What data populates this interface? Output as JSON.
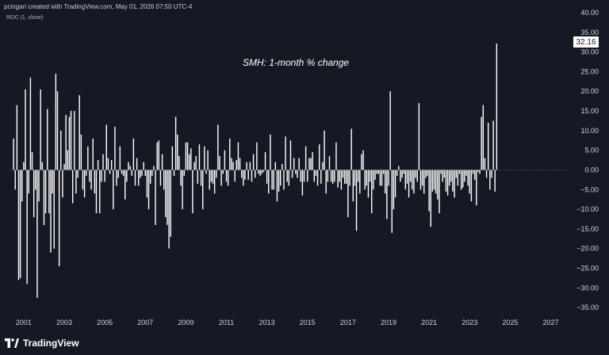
{
  "header": {
    "credit": "pcingari created with TradingView.com, May 01, 2026 07:50 UTC-4",
    "indicator": "ROC (1, close)"
  },
  "brand": {
    "name": "TradingView"
  },
  "colors": {
    "background": "#131722",
    "bar": "#ffffff",
    "axis_text": "#d1d4dc",
    "zero_line": "#4a4e5a"
  },
  "chart_data": {
    "type": "bar",
    "title": "SMH: 1-month % change",
    "xlabel": "",
    "ylabel": "",
    "ylim": [
      -38,
      40
    ],
    "xlim": [
      2000.3,
      2027.8
    ],
    "x_ticks": [
      "2001",
      "2003",
      "2005",
      "2007",
      "2009",
      "2011",
      "2013",
      "2015",
      "2017",
      "2019",
      "2021",
      "2023",
      "2025",
      "2027"
    ],
    "y_ticks": [
      "40.00",
      "35.00",
      "30.00",
      "25.00",
      "20.00",
      "15.00",
      "10.00",
      "5.00",
      "0.00",
      "−5.00",
      "−10.00",
      "−15.00",
      "−20.00",
      "−25.00",
      "−30.00",
      "−35.00"
    ],
    "last_value_label": "32.16",
    "last_value": 32.16,
    "x_start": 2000.5,
    "x_step": 0.08333,
    "values": [
      8,
      -5,
      16.5,
      -28,
      -27.5,
      -8,
      2,
      20.5,
      -29,
      -6,
      23.5,
      4.5,
      -12,
      -5,
      -32.5,
      -8,
      20.5,
      2,
      -14,
      -11,
      15.5,
      -11,
      -21,
      -6,
      -20,
      24.5,
      20,
      -24.5,
      10,
      -7,
      1.5,
      14,
      5,
      13.5,
      15,
      -8.5,
      15,
      -6,
      -2,
      19,
      9,
      -5,
      -7,
      -1.5,
      6,
      -3,
      -5,
      8,
      -6,
      -11,
      2.5,
      -11,
      -3,
      4,
      -3,
      11.5,
      3,
      -1,
      2.5,
      -10,
      11,
      -4,
      -2,
      6,
      -1,
      -1.5,
      -7.5,
      -3,
      2,
      1,
      -1.5,
      8,
      -4,
      3,
      -4,
      -2,
      -1.5,
      2,
      -1.5,
      -7,
      -10,
      -3.5,
      -1.5,
      1,
      -14,
      7,
      7.5,
      -4,
      4,
      -5,
      -12,
      -14,
      -20,
      -17,
      6,
      -1.5,
      13.5,
      9,
      3.5,
      -4,
      -10,
      -1.5,
      7,
      7,
      4,
      5.5,
      -11,
      2,
      3.5,
      -3.5,
      6.5,
      -4,
      -10,
      6,
      -1,
      5,
      -5,
      -3,
      -3.5,
      -6,
      -2,
      11.5,
      3.5,
      -4,
      -1,
      5,
      -3,
      -4,
      8,
      3,
      2,
      -3,
      2.5,
      7,
      3,
      -2,
      -4,
      -2.5,
      2,
      -2.5,
      2,
      -3,
      4,
      -2,
      7,
      -1,
      -1.5,
      -1,
      -0.5,
      4.5,
      -3.5,
      -6,
      9,
      -5,
      -5,
      2,
      -8,
      -5.5,
      -4,
      1.5,
      -5,
      8.5,
      -3,
      -4,
      7.5,
      -2,
      3,
      -1,
      -2,
      3,
      -3,
      -6.5,
      -3,
      6,
      -3,
      3,
      3,
      4.5,
      -3,
      -1.5,
      -4,
      6.5,
      -3.5,
      2,
      10,
      -6,
      -3,
      3.5,
      -3,
      -3.5,
      -3,
      7,
      -4.5,
      -3,
      -5,
      -2,
      -3.5,
      -3.5,
      -12,
      -4,
      10.5,
      -8,
      -4,
      -15.5,
      -3,
      -6,
      4,
      5,
      -5,
      -4,
      -7,
      -3,
      -11,
      -5,
      -2.5,
      -1,
      -1,
      -4,
      -4,
      -1,
      -6,
      -12.5,
      -4,
      20,
      -16,
      -10,
      -7,
      -1.5,
      1,
      -3,
      -2,
      -1,
      -5,
      -3.5,
      -7,
      -3,
      -5,
      -6,
      -2,
      -3,
      17,
      -5,
      -4,
      -6,
      -2,
      -1.5,
      -10.5,
      -14.5,
      -5.5,
      -5,
      -6,
      -7.5,
      -11,
      -1,
      -3,
      -2,
      -5.5,
      -6.5,
      -4,
      -3,
      -5.5,
      -7,
      -2,
      -4,
      -1,
      -5,
      -4.5,
      -3,
      -1.5,
      -4,
      -6,
      -8,
      -1,
      -2.5,
      -9,
      -0.5,
      -1,
      13.5,
      16.5,
      3,
      -2,
      12,
      -5,
      -2,
      12.5,
      -5.5,
      32.16
    ]
  }
}
